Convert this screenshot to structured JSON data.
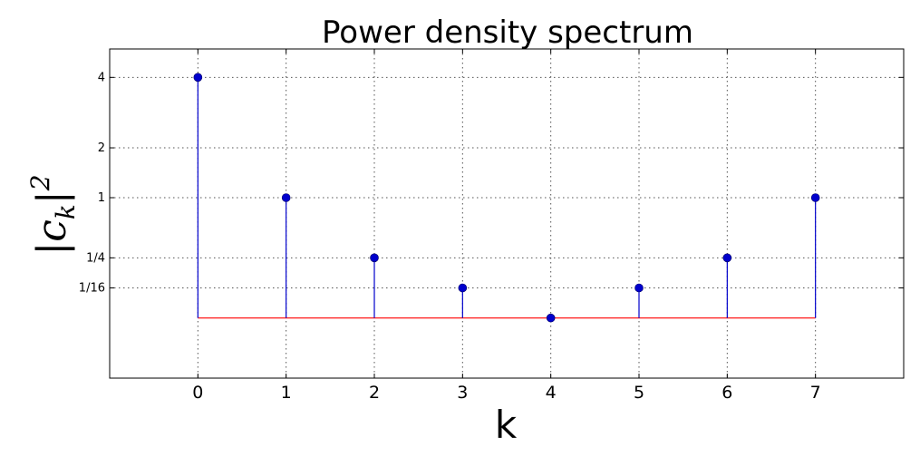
{
  "chart_data": {
    "type": "stem",
    "title": "Power density spectrum",
    "xlabel": "k",
    "ylabel": {
      "bar_open": "|",
      "base": "c",
      "subscript": "k",
      "bar_close": "|",
      "superscript": "2"
    },
    "x": [
      0,
      1,
      2,
      3,
      4,
      5,
      6,
      7
    ],
    "y": [
      4,
      1,
      0.25,
      0.0625,
      0,
      0.0625,
      0.25,
      1
    ],
    "xlim": [
      -1,
      8
    ],
    "xticks": [
      0,
      1,
      2,
      3,
      4,
      5,
      6,
      7
    ],
    "xtick_labels": [
      "0",
      "1",
      "2",
      "3",
      "4",
      "5",
      "6",
      "7"
    ],
    "yscale": "sqrt",
    "ylim": [
      -0.25,
      5
    ],
    "yticks": [
      0.0625,
      0.25,
      1,
      2,
      4
    ],
    "ytick_labels": [
      "1/16",
      "1/4",
      "1",
      "2",
      "4"
    ],
    "grid": true,
    "baseline_value": 0,
    "colors": {
      "stem": "#0000cc",
      "marker": "#0000cc",
      "baseline": "#ff0000"
    }
  }
}
